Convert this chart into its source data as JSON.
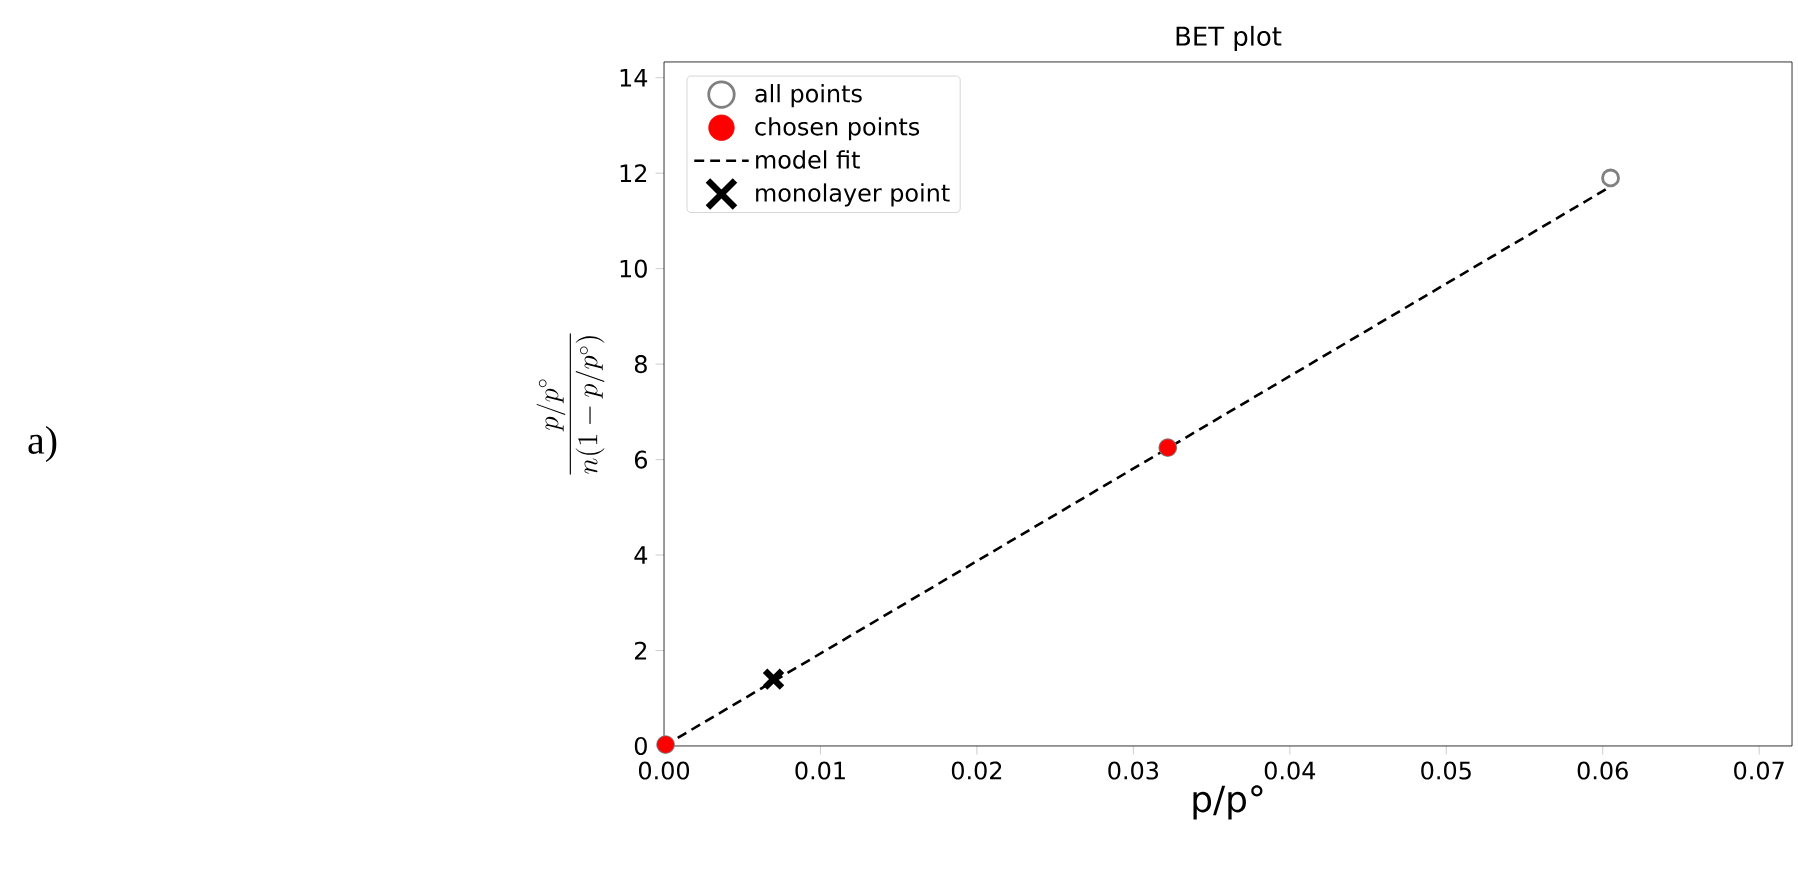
{
  "chart_data": {
    "type": "scatter",
    "title": "BET plot",
    "xlabel": "p/p°",
    "ylabel": "\\frac{p/p^{\\circ}}{n(1-p/p^{\\circ})}",
    "xlim": [
      0,
      0.0721
    ],
    "ylim": [
      0,
      14.33
    ],
    "xticks": [
      {
        "value": 0,
        "label": "0.00"
      },
      0.01,
      0.02,
      0.03,
      0.04,
      0.05,
      0.06,
      0.07
    ],
    "yticks": [
      0,
      2,
      4,
      6,
      8,
      10,
      12,
      14
    ],
    "legend": "top left",
    "grid": false,
    "annotations": [
      "a)"
    ],
    "series": [
      {
        "name": "all points",
        "marker": "circle",
        "color": "#808080",
        "x": [
          0.0001,
          0.0322,
          0.0605
        ],
        "values": [
          0.03,
          6.25,
          11.9
        ]
      },
      {
        "name": "chosen points",
        "marker": "circle",
        "color": "#ff0000",
        "x": [
          0.0001,
          0.0322
        ],
        "values": [
          0.03,
          6.25
        ]
      },
      {
        "name": "model fit",
        "type": "line",
        "line_style": "dashed",
        "marker": "none",
        "color": "#000000",
        "x": [
          0,
          0.0605
        ],
        "values": [
          0,
          11.72
        ]
      },
      {
        "name": "monolayer point",
        "marker": "cross",
        "color": "#000000",
        "x": [
          0.007
        ],
        "values": [
          1.4
        ]
      }
    ]
  }
}
